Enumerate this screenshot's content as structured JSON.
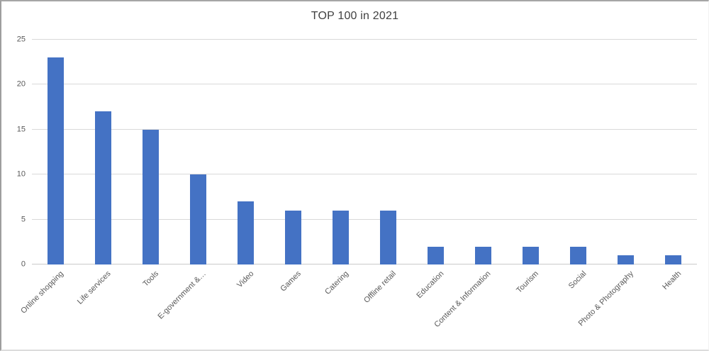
{
  "chart_data": {
    "type": "bar",
    "title": "TOP 100 in 2021",
    "categories": [
      "Online shopping",
      "Life services",
      "Tools",
      "E-government &…",
      "Video",
      "Games",
      "Catering",
      "Offline retail",
      "Education",
      "Content & Information",
      "Tourism",
      "Social",
      "Photo & Photography",
      "Health"
    ],
    "values": [
      23,
      17,
      15,
      10,
      7,
      6,
      6,
      6,
      2,
      2,
      2,
      2,
      1,
      1
    ],
    "xlabel": "",
    "ylabel": "",
    "ylim": [
      0,
      25
    ],
    "yticks": [
      0,
      5,
      10,
      15,
      20,
      25
    ],
    "grid": true,
    "legend": false,
    "x_tick_rotation_deg": 45,
    "colors": {
      "bar": "#4472C4",
      "gridline": "#D9D9D9",
      "axis_labels": "#595959",
      "title": "#404040"
    }
  }
}
